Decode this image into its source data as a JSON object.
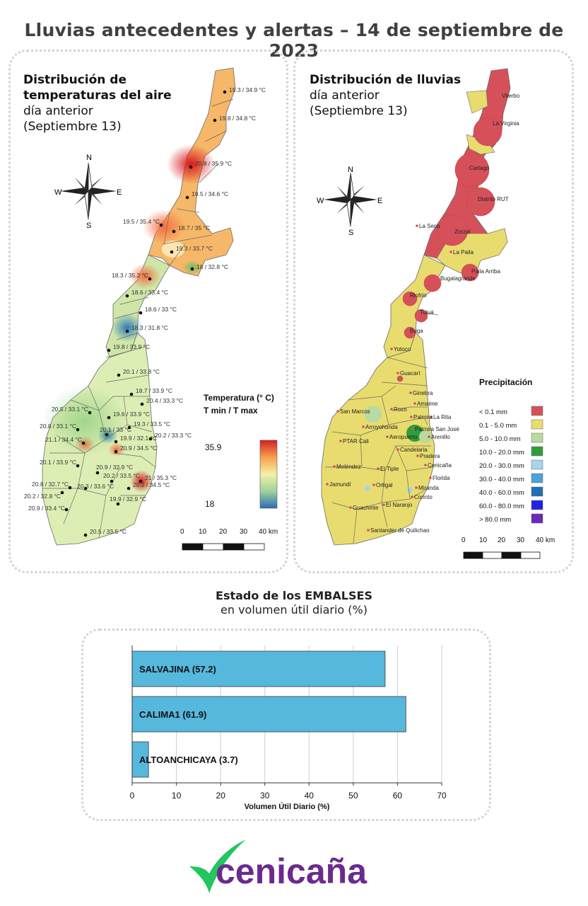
{
  "title": "Lluvias antecedentes y alertas – 14 de septiembre de 2023",
  "temperature_panel": {
    "title_bold": [
      "Distribución de",
      "temperaturas del aire"
    ],
    "title_regular": [
      "día anterior",
      "(Septiembre 13)"
    ],
    "legend_title": [
      "Temperatura (° C)",
      "T min / T max"
    ],
    "legend_max": "35.9",
    "legend_min": "18",
    "scale_labels": [
      "0",
      "10",
      "20",
      "30",
      "40 km"
    ],
    "compass": [
      "N",
      "S",
      "E",
      "W"
    ],
    "stations": [
      "19.3 / 34.9 °C",
      "19.8 / 34.8 °C",
      "20.8 / 35.9 °C",
      "19.5 / 34.6 °C",
      "19.5 / 35.4 °C",
      "18.7 / 35 °C",
      "19.3 / 33.7 °C",
      "18 / 32.8 °C",
      "18.3 / 35.2 °C",
      "18.6 / 33.4 °C",
      "18.6 / 33 °C",
      "18.3 / 31.8 °C",
      "19.8 / 33.9 °C",
      "20.1 / 33.8 °C",
      "18.7 / 33.9 °C",
      "20.4 / 33.3 °C",
      "20.5 / 33.1 °C",
      "19.6 / 33.9 °C",
      "20.8 / 33.1 °C",
      "20.1 / 33 °C",
      "19.3 / 33.5 °C",
      "21.1 / 34.4 °C",
      "19.9 / 32.1 °C",
      "20.9 / 34.5 °C",
      "20.2 / 33.3 °C",
      "20.1 / 33.9 °C",
      "20.9 / 32.9 °C",
      "20.2 / 33.5 °C",
      "21 / 35.3 °C",
      "20.8 / 32.7 °C",
      "20.3 / 33.6 °C",
      "20.2 / 34.5 °C",
      "20.2 / 32.8 °C",
      "20.9 / 33.4 °C",
      "19.9 / 32.9 °C",
      "20.5 / 33.5 °C"
    ]
  },
  "rain_panel": {
    "title_bold": [
      "Distribución de lluvias"
    ],
    "title_regular": [
      "día anterior",
      "(Septiembre 13)"
    ],
    "legend_title": "Precipitación",
    "legend": [
      {
        "label": "< 0.1 mm",
        "color": "#d6505a"
      },
      {
        "label": "0.1 - 5.0 mm",
        "color": "#e8dc6e"
      },
      {
        "label": "5.0 - 10.0 mm",
        "color": "#b7dba0"
      },
      {
        "label": "10.0 - 20.0 mm",
        "color": "#2e9e3a"
      },
      {
        "label": "20.0 - 30.0 mm",
        "color": "#a6d4e8"
      },
      {
        "label": "30.0 - 40.0 mm",
        "color": "#4aa2dc"
      },
      {
        "label": "40.0 - 60.0 mm",
        "color": "#1f70b4"
      },
      {
        "label": "60.0 - 80.0 mm",
        "color": "#2020e8"
      },
      {
        "label": "> 80.0 mm",
        "color": "#6a2ab8"
      }
    ],
    "scale_labels": [
      "0",
      "10",
      "20",
      "30",
      "40 km"
    ],
    "compass": [
      "N",
      "S",
      "E",
      "W"
    ],
    "towns": [
      "Viterbo",
      "La Virginia",
      "Cartago",
      "Distrito RUT",
      "La Seca",
      "Zorzal",
      "La Paila",
      "Paila Arriba",
      "Bugalagrande",
      "Riofrío",
      "Tuluá",
      "Buga",
      "Yotoco",
      "Guacarí",
      "Ginebra",
      "Amaime",
      "Rozo",
      "Palmira",
      "La Rita",
      "San Marcos",
      "Arroyohonda",
      "Palmira San José",
      "Aeropuerto",
      "Arenillo",
      "PTAR Cali",
      "Candelaria",
      "Pradera",
      "Meléndez",
      "El Tiple",
      "Cenicaña",
      "Jamundí",
      "Ortigal",
      "Florida",
      "Miranda",
      "Corinto",
      "Guachinte",
      "El Naranjo",
      "Santander de Quilichao"
    ]
  },
  "reservoirs": {
    "title": "Estado de los EMBALSES",
    "subtitle": "en volumen útil diario (%)"
  },
  "chart_data": {
    "type": "bar",
    "orientation": "horizontal",
    "categories": [
      "SALVAJINA",
      "CALIMA1",
      "ALTOANCHICAYA"
    ],
    "values": [
      57.2,
      61.9,
      3.7
    ],
    "bar_labels": [
      "SALVAJINA (57.2)",
      "CALIMA1 (61.9)",
      "ALTOANCHICAYA (3.7)"
    ],
    "xlabel": "Volumen Útil Diario (%)",
    "xlim": [
      0,
      70
    ],
    "xticks": [
      "0",
      "10",
      "20",
      "30",
      "40",
      "50",
      "60",
      "70"
    ],
    "grid": true,
    "bar_color": "#56b8dd"
  },
  "logo": {
    "text": "cenicaña",
    "color": "#6b2a8e",
    "mark_color": "#22c55e"
  }
}
